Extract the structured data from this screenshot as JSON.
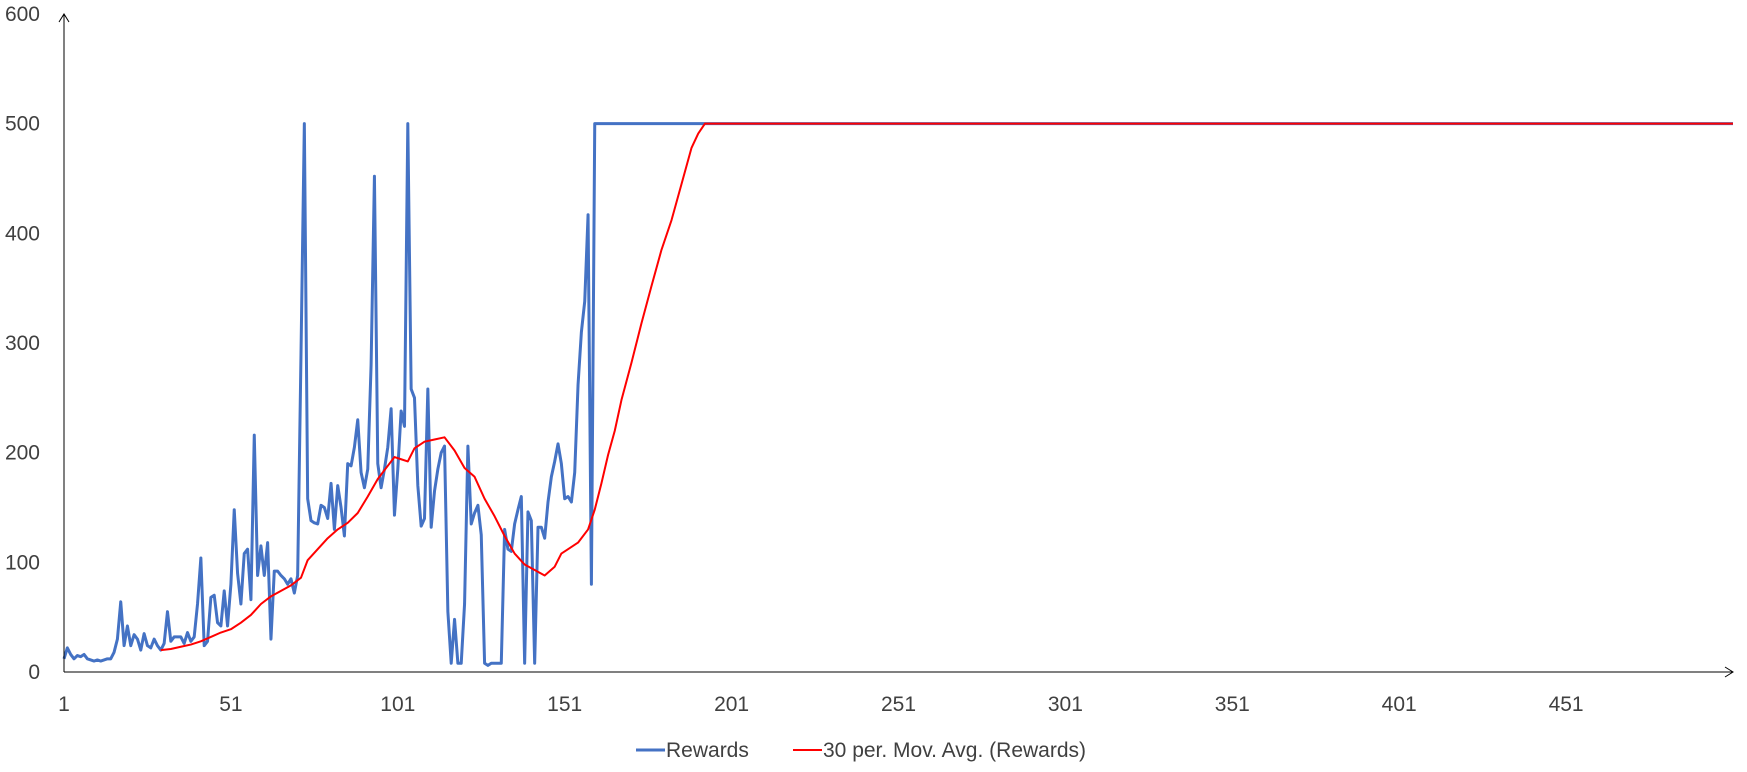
{
  "chart_data": {
    "type": "line",
    "title": "",
    "xlabel": "",
    "ylabel": "",
    "xlim": [
      1,
      501
    ],
    "ylim": [
      0,
      600
    ],
    "grid": false,
    "legend_position": "bottom",
    "x_tick_labels": [
      "1",
      "51",
      "101",
      "151",
      "201",
      "251",
      "301",
      "351",
      "401",
      "451"
    ],
    "y_tick_labels": [
      "0",
      "100",
      "200",
      "300",
      "400",
      "500",
      "600"
    ],
    "series": [
      {
        "name": "Rewards",
        "color": "#4472C4",
        "points": [
          [
            1,
            12
          ],
          [
            2,
            22
          ],
          [
            3,
            16
          ],
          [
            4,
            12
          ],
          [
            5,
            15
          ],
          [
            6,
            14
          ],
          [
            7,
            16
          ],
          [
            8,
            12
          ],
          [
            9,
            11
          ],
          [
            10,
            10
          ],
          [
            11,
            11
          ],
          [
            12,
            10
          ],
          [
            13,
            11
          ],
          [
            14,
            12
          ],
          [
            15,
            12
          ],
          [
            16,
            18
          ],
          [
            17,
            30
          ],
          [
            18,
            64
          ],
          [
            19,
            24
          ],
          [
            20,
            42
          ],
          [
            21,
            24
          ],
          [
            22,
            34
          ],
          [
            23,
            30
          ],
          [
            24,
            20
          ],
          [
            25,
            35
          ],
          [
            26,
            24
          ],
          [
            27,
            22
          ],
          [
            28,
            30
          ],
          [
            29,
            24
          ],
          [
            30,
            20
          ],
          [
            31,
            26
          ],
          [
            32,
            55
          ],
          [
            33,
            28
          ],
          [
            34,
            32
          ],
          [
            35,
            32
          ],
          [
            36,
            32
          ],
          [
            37,
            26
          ],
          [
            38,
            36
          ],
          [
            39,
            28
          ],
          [
            40,
            32
          ],
          [
            41,
            62
          ],
          [
            42,
            104
          ],
          [
            43,
            24
          ],
          [
            44,
            28
          ],
          [
            45,
            68
          ],
          [
            46,
            70
          ],
          [
            47,
            45
          ],
          [
            48,
            42
          ],
          [
            49,
            74
          ],
          [
            50,
            42
          ],
          [
            51,
            80
          ],
          [
            52,
            148
          ],
          [
            53,
            90
          ],
          [
            54,
            62
          ],
          [
            55,
            108
          ],
          [
            56,
            112
          ],
          [
            57,
            66
          ],
          [
            58,
            216
          ],
          [
            59,
            88
          ],
          [
            60,
            115
          ],
          [
            61,
            88
          ],
          [
            62,
            118
          ],
          [
            63,
            30
          ],
          [
            64,
            92
          ],
          [
            65,
            92
          ],
          [
            66,
            88
          ],
          [
            67,
            85
          ],
          [
            68,
            80
          ],
          [
            69,
            85
          ],
          [
            70,
            72
          ],
          [
            71,
            88
          ],
          [
            72,
            290
          ],
          [
            73,
            500
          ],
          [
            74,
            158
          ],
          [
            75,
            138
          ],
          [
            76,
            136
          ],
          [
            77,
            135
          ],
          [
            78,
            152
          ],
          [
            79,
            150
          ],
          [
            80,
            140
          ],
          [
            81,
            172
          ],
          [
            82,
            130
          ],
          [
            83,
            170
          ],
          [
            84,
            150
          ],
          [
            85,
            124
          ],
          [
            86,
            190
          ],
          [
            87,
            188
          ],
          [
            88,
            205
          ],
          [
            89,
            230
          ],
          [
            90,
            182
          ],
          [
            91,
            168
          ],
          [
            92,
            185
          ],
          [
            93,
            280
          ],
          [
            94,
            452
          ],
          [
            95,
            190
          ],
          [
            96,
            168
          ],
          [
            97,
            185
          ],
          [
            98,
            205
          ],
          [
            99,
            240
          ],
          [
            100,
            143
          ],
          [
            101,
            185
          ],
          [
            102,
            238
          ],
          [
            103,
            224
          ],
          [
            104,
            500
          ],
          [
            105,
            258
          ],
          [
            106,
            250
          ],
          [
            107,
            170
          ],
          [
            108,
            133
          ],
          [
            109,
            140
          ],
          [
            110,
            258
          ],
          [
            111,
            132
          ],
          [
            112,
            165
          ],
          [
            113,
            185
          ],
          [
            114,
            200
          ],
          [
            115,
            206
          ],
          [
            116,
            55
          ],
          [
            117,
            8
          ],
          [
            118,
            48
          ],
          [
            119,
            8
          ],
          [
            120,
            8
          ],
          [
            121,
            62
          ],
          [
            122,
            206
          ],
          [
            123,
            135
          ],
          [
            124,
            145
          ],
          [
            125,
            152
          ],
          [
            126,
            125
          ],
          [
            127,
            8
          ],
          [
            128,
            6
          ],
          [
            129,
            8
          ],
          [
            130,
            8
          ],
          [
            131,
            8
          ],
          [
            132,
            8
          ],
          [
            133,
            130
          ],
          [
            134,
            112
          ],
          [
            135,
            110
          ],
          [
            136,
            135
          ],
          [
            137,
            148
          ],
          [
            138,
            160
          ],
          [
            139,
            8
          ],
          [
            140,
            146
          ],
          [
            141,
            138
          ],
          [
            142,
            8
          ],
          [
            143,
            132
          ],
          [
            144,
            132
          ],
          [
            145,
            122
          ],
          [
            146,
            155
          ],
          [
            147,
            178
          ],
          [
            148,
            192
          ],
          [
            149,
            208
          ],
          [
            150,
            190
          ],
          [
            151,
            158
          ],
          [
            152,
            160
          ],
          [
            153,
            155
          ],
          [
            154,
            182
          ],
          [
            155,
            262
          ],
          [
            156,
            310
          ],
          [
            157,
            338
          ],
          [
            158,
            417
          ],
          [
            159,
            80
          ],
          [
            160,
            500
          ],
          [
            161,
            500
          ],
          [
            200,
            500
          ],
          [
            300,
            500
          ],
          [
            400,
            500
          ],
          [
            501,
            500
          ]
        ]
      },
      {
        "name": "30 per. Mov. Avg. (Rewards)",
        "color": "#FF0000",
        "points": [
          [
            30,
            20
          ],
          [
            33,
            21
          ],
          [
            36,
            23
          ],
          [
            39,
            25
          ],
          [
            42,
            28
          ],
          [
            45,
            32
          ],
          [
            48,
            36
          ],
          [
            51,
            39
          ],
          [
            54,
            45
          ],
          [
            57,
            52
          ],
          [
            60,
            62
          ],
          [
            63,
            69
          ],
          [
            66,
            74
          ],
          [
            69,
            79
          ],
          [
            72,
            86
          ],
          [
            74,
            102
          ],
          [
            77,
            112
          ],
          [
            80,
            122
          ],
          [
            83,
            130
          ],
          [
            86,
            136
          ],
          [
            89,
            145
          ],
          [
            92,
            160
          ],
          [
            95,
            176
          ],
          [
            98,
            188
          ],
          [
            100,
            196
          ],
          [
            102,
            194
          ],
          [
            104,
            192
          ],
          [
            106,
            204
          ],
          [
            109,
            210
          ],
          [
            112,
            212
          ],
          [
            115,
            214
          ],
          [
            118,
            202
          ],
          [
            121,
            186
          ],
          [
            124,
            178
          ],
          [
            127,
            158
          ],
          [
            130,
            142
          ],
          [
            133,
            124
          ],
          [
            136,
            108
          ],
          [
            139,
            98
          ],
          [
            142,
            93
          ],
          [
            145,
            88
          ],
          [
            148,
            96
          ],
          [
            150,
            108
          ],
          [
            152,
            112
          ],
          [
            155,
            118
          ],
          [
            158,
            130
          ],
          [
            160,
            148
          ],
          [
            162,
            172
          ],
          [
            164,
            198
          ],
          [
            166,
            220
          ],
          [
            168,
            248
          ],
          [
            171,
            282
          ],
          [
            174,
            318
          ],
          [
            177,
            352
          ],
          [
            180,
            385
          ],
          [
            183,
            412
          ],
          [
            186,
            445
          ],
          [
            189,
            478
          ],
          [
            191,
            491
          ],
          [
            193,
            500
          ],
          [
            501,
            500
          ]
        ]
      }
    ]
  }
}
